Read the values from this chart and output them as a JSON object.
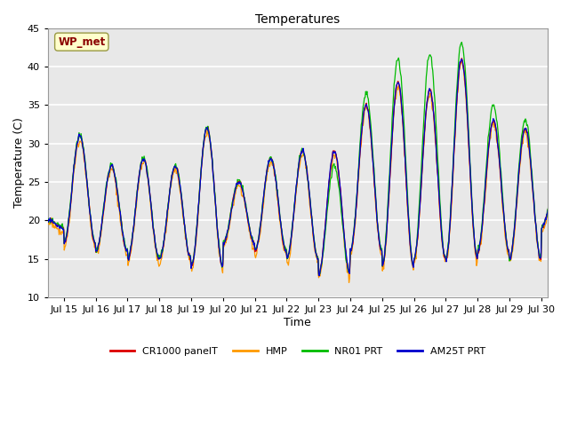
{
  "title": "Temperatures",
  "xlabel": "Time",
  "ylabel": "Temperature (C)",
  "ylim": [
    10,
    45
  ],
  "xlim_days": [
    14.5,
    30.2
  ],
  "annotation_text": "WP_met",
  "legend_labels": [
    "CR1000 panelT",
    "HMP",
    "NR01 PRT",
    "AM25T PRT"
  ],
  "line_colors": [
    "#dd0000",
    "#ff9900",
    "#00bb00",
    "#0000cc"
  ],
  "background_color": "#e8e8e8",
  "grid_color": "#ffffff",
  "tick_labels": [
    "Jul 15",
    "Jul 16",
    "Jul 17",
    "Jul 18",
    "Jul 19",
    "Jul 20",
    "Jul 21",
    "Jul 22",
    "Jul 23",
    "Jul 24",
    "Jul 25",
    "Jul 26",
    "Jul 27",
    "Jul 28",
    "Jul 29",
    "Jul 30"
  ],
  "tick_positions": [
    15,
    16,
    17,
    18,
    19,
    20,
    21,
    22,
    23,
    24,
    25,
    26,
    27,
    28,
    29,
    30
  ],
  "yticks": [
    10,
    15,
    20,
    25,
    30,
    35,
    40,
    45
  ],
  "day_params": {
    "14": {
      "lo": 19,
      "hi": 20
    },
    "15": {
      "lo": 17,
      "hi": 31
    },
    "16": {
      "lo": 16,
      "hi": 27
    },
    "17": {
      "lo": 15,
      "hi": 28
    },
    "18": {
      "lo": 15,
      "hi": 27
    },
    "19": {
      "lo": 14,
      "hi": 32
    },
    "20": {
      "lo": 17,
      "hi": 25
    },
    "21": {
      "lo": 16,
      "hi": 28
    },
    "22": {
      "lo": 15,
      "hi": 29
    },
    "23": {
      "lo": 13,
      "hi": 29
    },
    "24": {
      "lo": 16,
      "hi": 35
    },
    "25": {
      "lo": 14,
      "hi": 38
    },
    "26": {
      "lo": 15,
      "hi": 37
    },
    "27": {
      "lo": 15,
      "hi": 41
    },
    "28": {
      "lo": 16,
      "hi": 33
    },
    "29": {
      "lo": 15,
      "hi": 32
    },
    "30": {
      "lo": 19,
      "hi": 25
    }
  }
}
